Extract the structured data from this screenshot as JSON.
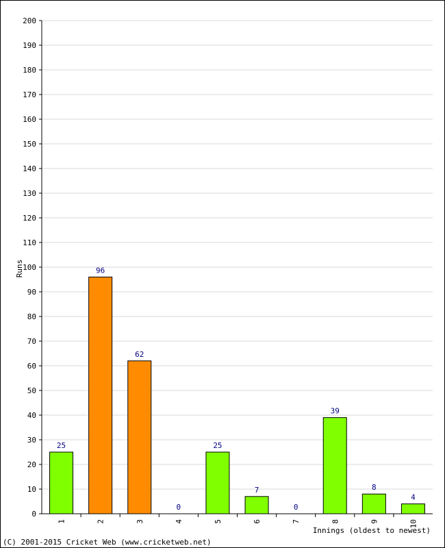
{
  "chart_data": {
    "type": "bar",
    "categories": [
      "1",
      "2",
      "3",
      "4",
      "5",
      "6",
      "7",
      "8",
      "9",
      "10"
    ],
    "values": [
      25,
      96,
      62,
      0,
      25,
      7,
      0,
      39,
      8,
      4
    ],
    "data_labels": [
      "25",
      "96",
      "62",
      "0",
      "25",
      "7",
      "0",
      "39",
      "8",
      "4"
    ],
    "bar_colors": [
      "#80ff00",
      "#ff8c00",
      "#ff8c00",
      "#80ff00",
      "#80ff00",
      "#80ff00",
      "#80ff00",
      "#80ff00",
      "#80ff00",
      "#80ff00"
    ],
    "xlabel": "Innings (oldest to newest)",
    "ylabel": "Runs",
    "ylim": [
      0,
      200
    ],
    "yticks": [
      "0",
      "10",
      "20",
      "30",
      "40",
      "50",
      "60",
      "70",
      "80",
      "90",
      "100",
      "110",
      "120",
      "130",
      "140",
      "150",
      "160",
      "170",
      "180",
      "190",
      "200"
    ],
    "grid": true,
    "legend": "none"
  },
  "footer": {
    "copyright": "(C) 2001-2015 Cricket Web (www.cricketweb.net)"
  }
}
